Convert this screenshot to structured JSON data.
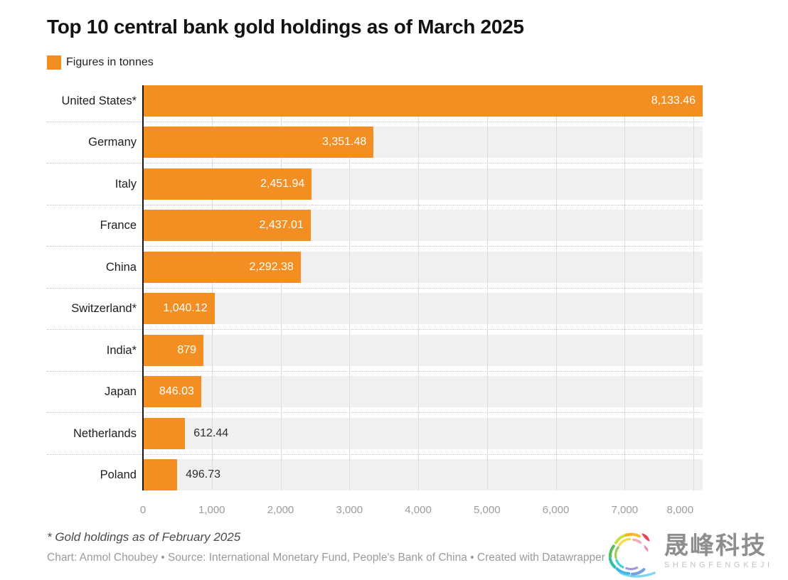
{
  "title": "Top 10 central bank gold holdings as of March 2025",
  "legend": {
    "label": "Figures in tonnes"
  },
  "chart_data": {
    "type": "bar",
    "orientation": "horizontal",
    "title": "Top 10 central bank gold holdings as of March 2025",
    "unit_note": "Figures in tonnes",
    "categories": [
      "United States*",
      "Germany",
      "Italy",
      "France",
      "China",
      "Switzerland*",
      "India*",
      "Japan",
      "Netherlands",
      "Poland"
    ],
    "values": [
      8133.46,
      3351.48,
      2451.94,
      2437.01,
      2292.38,
      1040.12,
      879,
      846.03,
      612.44,
      496.73
    ],
    "value_labels": [
      "8,133.46",
      "3,351.48",
      "2,451.94",
      "2,437.01",
      "2,292.38",
      "1,040.12",
      "879",
      "846.03",
      "612.44",
      "496.73"
    ],
    "value_label_inside": [
      true,
      true,
      true,
      true,
      true,
      true,
      true,
      true,
      false,
      false
    ],
    "xlim": [
      0,
      8133.46
    ],
    "x_ticks": [
      0,
      1000,
      2000,
      3000,
      4000,
      5000,
      6000,
      7000,
      8000
    ],
    "x_tick_labels": [
      "0",
      "1,000",
      "2,000",
      "3,000",
      "4,000",
      "5,000",
      "6,000",
      "7,000",
      "8,000"
    ],
    "grid": true,
    "legend_position": "top-left"
  },
  "footnote": "* Gold holdings as of February 2025",
  "attribution": "Chart: Anmol Choubey • Source: International Monetary Fund, People's Bank of China • Created with Datawrapper",
  "watermark": {
    "name": "晟峰科技",
    "subtitle": "SHENGFENGKEJI"
  },
  "colors": {
    "bar": "#F28E22",
    "band": "#F0F0F0",
    "grid": "#DDDDDD",
    "axis_line": "#141414",
    "tick_text": "#9C9C9C",
    "value_inside": "#FFFFFF",
    "value_outside": "#2E2E2E"
  }
}
